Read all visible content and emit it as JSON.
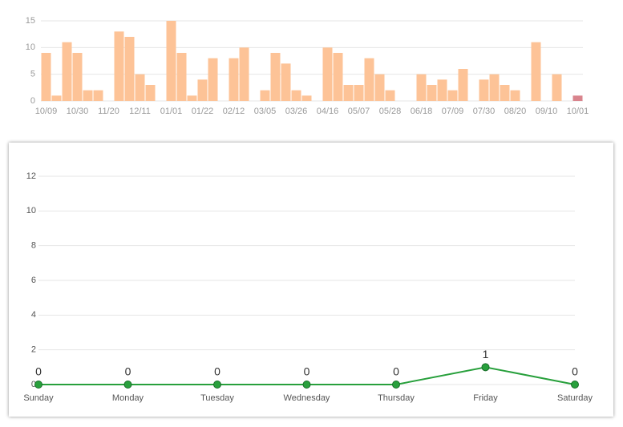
{
  "chart_data": [
    {
      "type": "bar",
      "categories": [
        "10/09",
        null,
        null,
        "10/30",
        null,
        null,
        "11/20",
        null,
        null,
        "12/11",
        null,
        null,
        "01/01",
        null,
        null,
        "01/22",
        null,
        null,
        "02/12",
        null,
        null,
        "03/05",
        null,
        null,
        "03/26",
        null,
        null,
        "04/16",
        null,
        null,
        "05/07",
        null,
        null,
        "05/28",
        null,
        null,
        "06/18",
        null,
        null,
        "07/09",
        null,
        null,
        "07/30",
        null,
        null,
        "08/20",
        null,
        null,
        "09/10",
        null,
        null,
        "10/01"
      ],
      "values": [
        9,
        1,
        11,
        9,
        2,
        2,
        0,
        13,
        12,
        5,
        3,
        0,
        15,
        9,
        1,
        4,
        8,
        0,
        8,
        10,
        0,
        2,
        9,
        7,
        2,
        1,
        0,
        10,
        9,
        3,
        3,
        8,
        5,
        2,
        0,
        0,
        5,
        3,
        4,
        2,
        6,
        0,
        4,
        5,
        3,
        2,
        0,
        11,
        0,
        5,
        0,
        1
      ],
      "colors": [
        "#fdc397",
        "#fdc397",
        "#fdc397",
        "#fdc397",
        "#fdc397",
        "#fdc397",
        "#fdc397",
        "#fdc397",
        "#fdc397",
        "#fdc397",
        "#fdc397",
        "#fdc397",
        "#fdc397",
        "#fdc397",
        "#fdc397",
        "#fdc397",
        "#fdc397",
        "#fdc397",
        "#fdc397",
        "#fdc397",
        "#fdc397",
        "#fdc397",
        "#fdc397",
        "#fdc397",
        "#fdc397",
        "#fdc397",
        "#fdc397",
        "#fdc397",
        "#fdc397",
        "#fdc397",
        "#fdc397",
        "#fdc397",
        "#fdc397",
        "#fdc397",
        "#fdc397",
        "#fdc397",
        "#fdc397",
        "#fdc397",
        "#fdc397",
        "#fdc397",
        "#fdc397",
        "#fdc397",
        "#fdc397",
        "#fdc397",
        "#fdc397",
        "#fdc397",
        "#fdc397",
        "#fdc397",
        "#fdc397",
        "#fdc397",
        "#fdc397",
        "#d9848d"
      ],
      "ylim": [
        0,
        15
      ],
      "yticks": [
        0,
        5,
        10,
        15
      ],
      "grid": true
    },
    {
      "type": "line",
      "categories": [
        "Sunday",
        "Monday",
        "Tuesday",
        "Wednesday",
        "Thursday",
        "Friday",
        "Saturday"
      ],
      "values": [
        0,
        0,
        0,
        0,
        0,
        1,
        0
      ],
      "color": "#28a03c",
      "ylim": [
        0,
        12
      ],
      "yticks": [
        0,
        2,
        4,
        6,
        8,
        10,
        12
      ],
      "grid": true,
      "data_labels": true
    }
  ]
}
